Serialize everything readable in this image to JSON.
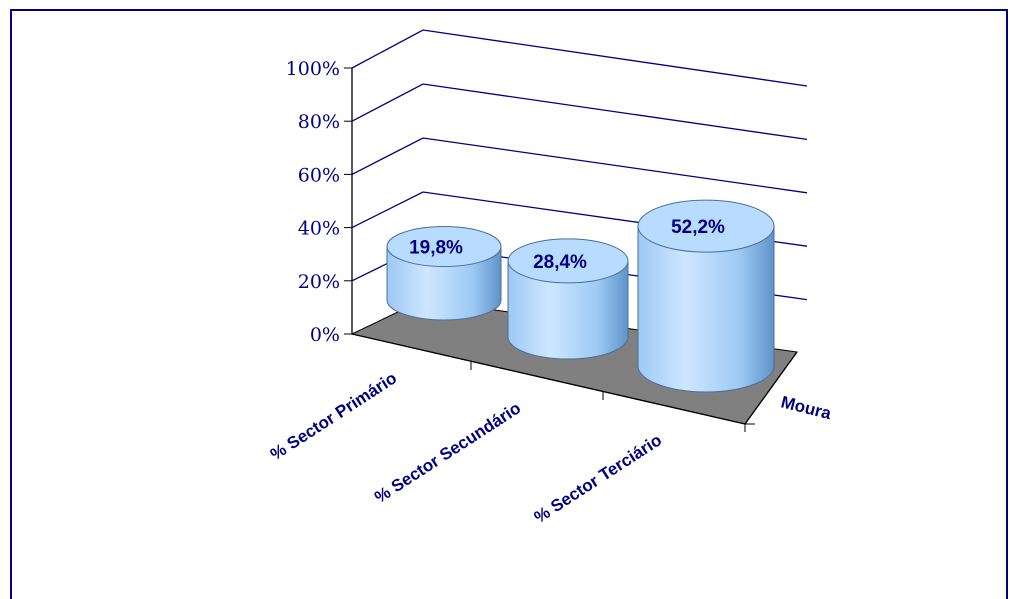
{
  "chart_data": {
    "type": "bar",
    "style": "3d-cylinder",
    "categories": [
      "% Sector Primário",
      "% Sector Secundário",
      "% Sector Terciário"
    ],
    "series": [
      {
        "name": "Moura",
        "values": [
          19.8,
          28.4,
          52.2
        ]
      }
    ],
    "data_labels": [
      "19,8%",
      "28,4%",
      "52,2%"
    ],
    "y_ticks": [
      "0%",
      "20%",
      "40%",
      "60%",
      "80%",
      "100%"
    ],
    "ylim": [
      0,
      100
    ],
    "grid": true,
    "colors": {
      "frame": "#000080",
      "axis": "#000000",
      "gridline": "#000080",
      "tick_text": "#000080",
      "category_text": "#000080",
      "data_label_text": "#000080",
      "floor": "#808080",
      "bar_light": "#cfe6ff",
      "bar_mid": "#9cc9f4",
      "bar_dark": "#5f93c8",
      "bar_top": "#b7dcff"
    }
  }
}
